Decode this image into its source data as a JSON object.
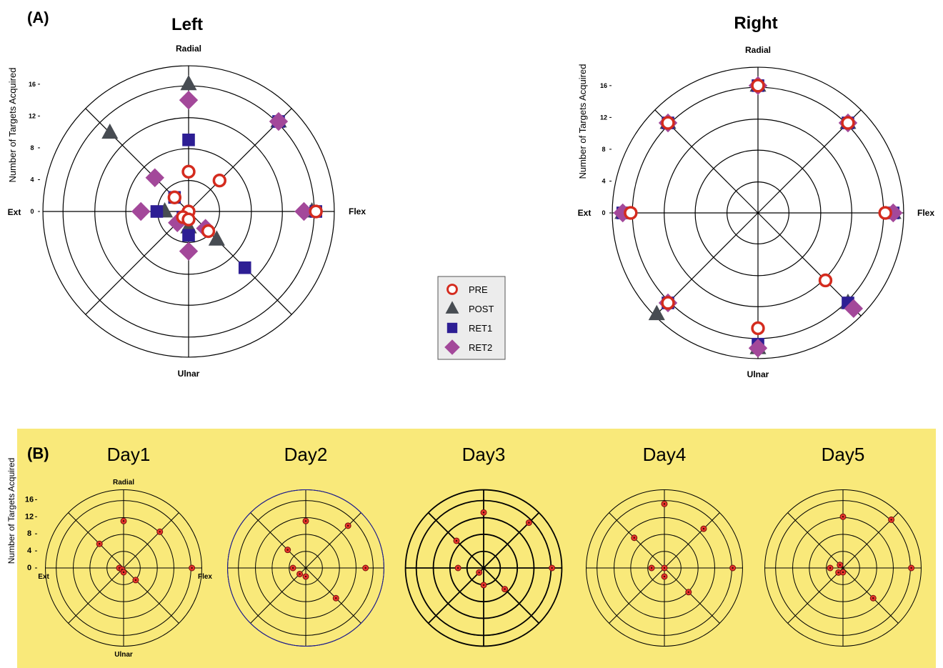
{
  "panel_a": {
    "label": "(A)",
    "legend": {
      "entries": [
        {
          "name": "PRE",
          "color": "#d42b1e",
          "marker": "open-circle"
        },
        {
          "name": "POST",
          "color": "#474c52",
          "marker": "triangle"
        },
        {
          "name": "RET1",
          "color": "#2d1e94",
          "marker": "square"
        },
        {
          "name": "RET2",
          "color": "#a3489a",
          "marker": "diamond"
        }
      ]
    }
  },
  "panel_b": {
    "label": "(B)",
    "background": "#f9e97a"
  },
  "colors": {
    "pre": "#d42b1e",
    "post": "#474c52",
    "ret1": "#2d1e94",
    "ret2": "#a3489a",
    "title_gray": "#aaaaaa",
    "dot": "#e8352a"
  },
  "chart_data": [
    {
      "type": "scatter",
      "subtype": "polar",
      "title": "Left",
      "ylabel": "Number of Targets Acquired",
      "direction_labels": {
        "top": "Radial",
        "bottom": "Ulnar",
        "left": "Ext",
        "right": "Flex"
      },
      "radial_ticks": [
        "0",
        "4",
        "8",
        "12",
        "16"
      ],
      "rlim": [
        0,
        16
      ],
      "rings": [
        4,
        8,
        12,
        16,
        18
      ],
      "angles_deg": [
        0,
        45,
        90,
        135,
        180,
        225,
        270,
        315
      ],
      "angle_direction_names": [
        "Flex",
        "Flex-Radial",
        "Radial",
        "Ext-Radial",
        "Ext",
        "Ext-Ulnar",
        "Ulnar",
        "Flex-Ulnar"
      ],
      "series": [
        {
          "name": "PRE",
          "marker": "open-circle",
          "values": [
            16,
            5.5,
            5,
            2.5,
            0,
            1,
            1,
            3.5
          ]
        },
        {
          "name": "POST",
          "marker": "triangle",
          "values": [
            15.5,
            16,
            16,
            14,
            3,
            1,
            2,
            5
          ]
        },
        {
          "name": "RET1",
          "marker": "square",
          "values": [
            16,
            16,
            9,
            2.5,
            4,
            1,
            3,
            10
          ]
        },
        {
          "name": "RET2",
          "marker": "diamond",
          "values": [
            14.5,
            16,
            14,
            6,
            6,
            2,
            5,
            3
          ]
        }
      ]
    },
    {
      "type": "scatter",
      "subtype": "polar",
      "title": "Right",
      "ylabel": "Number of Targets Acquired",
      "direction_labels": {
        "top": "Radial",
        "bottom": "Ulnar",
        "left": "Ext",
        "right": "Flex"
      },
      "radial_ticks": [
        "0",
        "4",
        "8",
        "12",
        "16"
      ],
      "rlim": [
        0,
        16
      ],
      "rings": [
        4,
        8,
        12,
        16,
        18
      ],
      "angles_deg": [
        0,
        45,
        90,
        135,
        180,
        225,
        270,
        315
      ],
      "angle_direction_names": [
        "Flex",
        "Flex-Radial",
        "Radial",
        "Ext-Radial",
        "Ext",
        "Ext-Ulnar",
        "Ulnar",
        "Flex-Ulnar"
      ],
      "series": [
        {
          "name": "PRE",
          "marker": "open-circle",
          "values": [
            16,
            16,
            16,
            16,
            16,
            16,
            14.5,
            12
          ]
        },
        {
          "name": "POST",
          "marker": "triangle",
          "values": [
            17,
            16,
            16,
            16,
            17,
            18,
            17,
            16
          ]
        },
        {
          "name": "RET1",
          "marker": "square",
          "values": [
            17,
            16,
            16,
            16,
            17,
            16,
            16.5,
            16
          ]
        },
        {
          "name": "RET2",
          "marker": "diamond",
          "values": [
            17,
            16,
            16,
            16,
            17,
            16,
            17,
            17
          ]
        }
      ]
    },
    {
      "type": "scatter",
      "subtype": "polar",
      "title": "Day1",
      "ylabel": "Number of Targets Acquired",
      "direction_labels": {
        "top": "Radial",
        "bottom": "Ulnar",
        "left": "Ext",
        "right": "Flex"
      },
      "radial_ticks": [
        "0",
        "4",
        "8",
        "12",
        "16"
      ],
      "rlim": [
        0,
        16
      ],
      "angles_deg": [
        0,
        45,
        90,
        135,
        180,
        225,
        270,
        315
      ],
      "values": [
        16,
        12,
        11,
        8,
        1,
        0.5,
        1,
        4
      ]
    },
    {
      "type": "scatter",
      "subtype": "polar",
      "title": "Day2",
      "rlim": [
        0,
        16
      ],
      "angles_deg": [
        0,
        45,
        90,
        135,
        180,
        225,
        270,
        315
      ],
      "values": [
        14,
        14,
        11,
        6,
        3,
        2,
        2,
        10
      ]
    },
    {
      "type": "scatter",
      "subtype": "polar",
      "title": "Day3",
      "rlim": [
        0,
        16
      ],
      "angles_deg": [
        0,
        45,
        90,
        135,
        180,
        225,
        270,
        315
      ],
      "values": [
        16,
        15,
        13,
        9,
        6,
        1.5,
        4,
        7
      ]
    },
    {
      "type": "scatter",
      "subtype": "polar",
      "title": "Day4",
      "rlim": [
        0,
        16
      ],
      "angles_deg": [
        0,
        45,
        90,
        135,
        180,
        225,
        270,
        315
      ],
      "values": [
        16,
        13,
        15,
        10,
        3,
        0,
        2,
        8
      ]
    },
    {
      "type": "scatter",
      "subtype": "polar",
      "title": "Day5",
      "rlim": [
        0,
        16
      ],
      "angles_deg": [
        0,
        45,
        90,
        135,
        180,
        225,
        270,
        315
      ],
      "values": [
        16,
        16,
        12,
        1,
        3,
        1.5,
        1,
        10
      ]
    }
  ]
}
